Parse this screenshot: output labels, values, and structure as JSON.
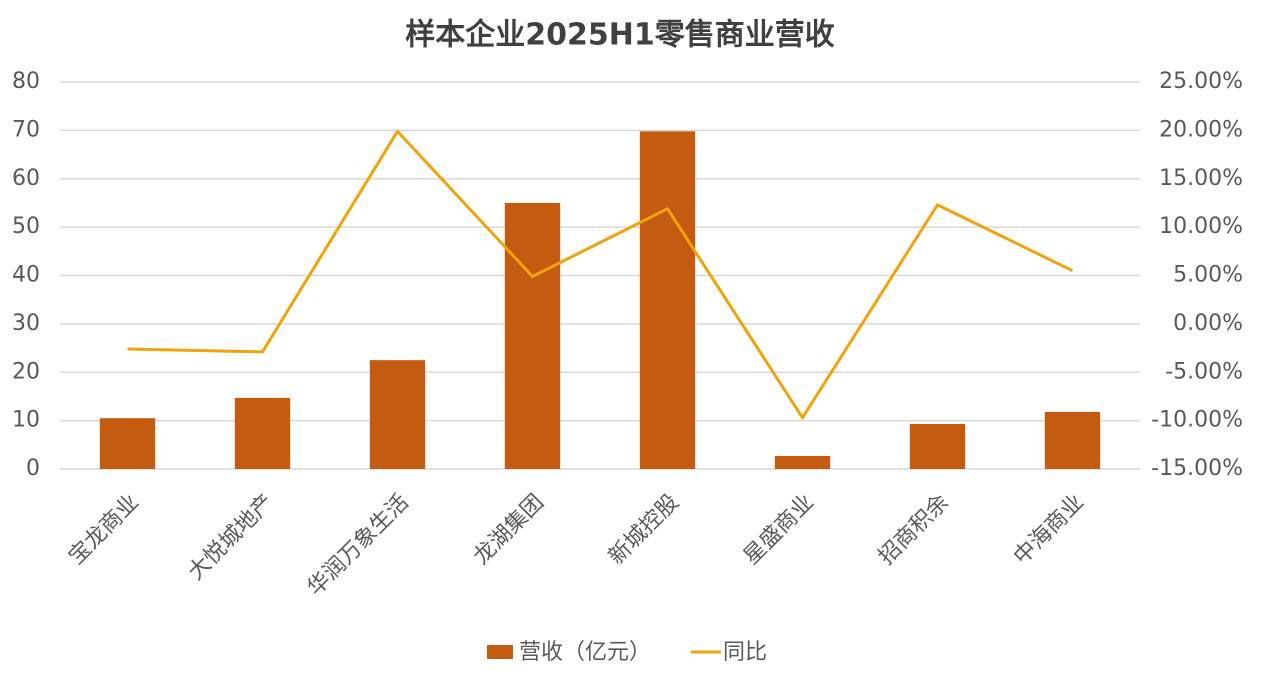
{
  "chart_data": {
    "type": "bar-line",
    "title": "样本企业2025H1零售商业营收",
    "categories": [
      "宝龙商业",
      "大悦城地产",
      "华润万象生活",
      "龙湖集团",
      "新城控股",
      "星盛商业",
      "招商积余",
      "中海商业"
    ],
    "series": [
      {
        "name": "营收（亿元）",
        "type": "bar",
        "color": "#c55a11",
        "values": [
          10.5,
          14.7,
          22.5,
          55.0,
          69.8,
          2.7,
          9.3,
          11.8
        ]
      },
      {
        "name": "同比",
        "type": "line",
        "axis": "y2",
        "color": "#f0a30a",
        "values": [
          -2.6,
          -2.9,
          19.9,
          4.9,
          11.9,
          -9.7,
          12.3,
          5.5
        ]
      }
    ],
    "ylim": [
      0,
      80
    ],
    "yticks": [
      0,
      10,
      20,
      30,
      40,
      50,
      60,
      70,
      80
    ],
    "y2lim": [
      -15,
      25
    ],
    "y2ticks": [
      {
        "value": -15,
        "label": "-15.00%"
      },
      {
        "value": -10,
        "label": "-10.00%"
      },
      {
        "value": -5,
        "label": "-5.00%"
      },
      {
        "value": 0,
        "label": "0.00%"
      },
      {
        "value": 5,
        "label": "5.00%"
      },
      {
        "value": 10,
        "label": "10.00%"
      },
      {
        "value": 15,
        "label": "15.00%"
      },
      {
        "value": 20,
        "label": "20.00%"
      },
      {
        "value": 25,
        "label": "25.00%"
      }
    ],
    "grid": true,
    "legend": "bottom"
  }
}
